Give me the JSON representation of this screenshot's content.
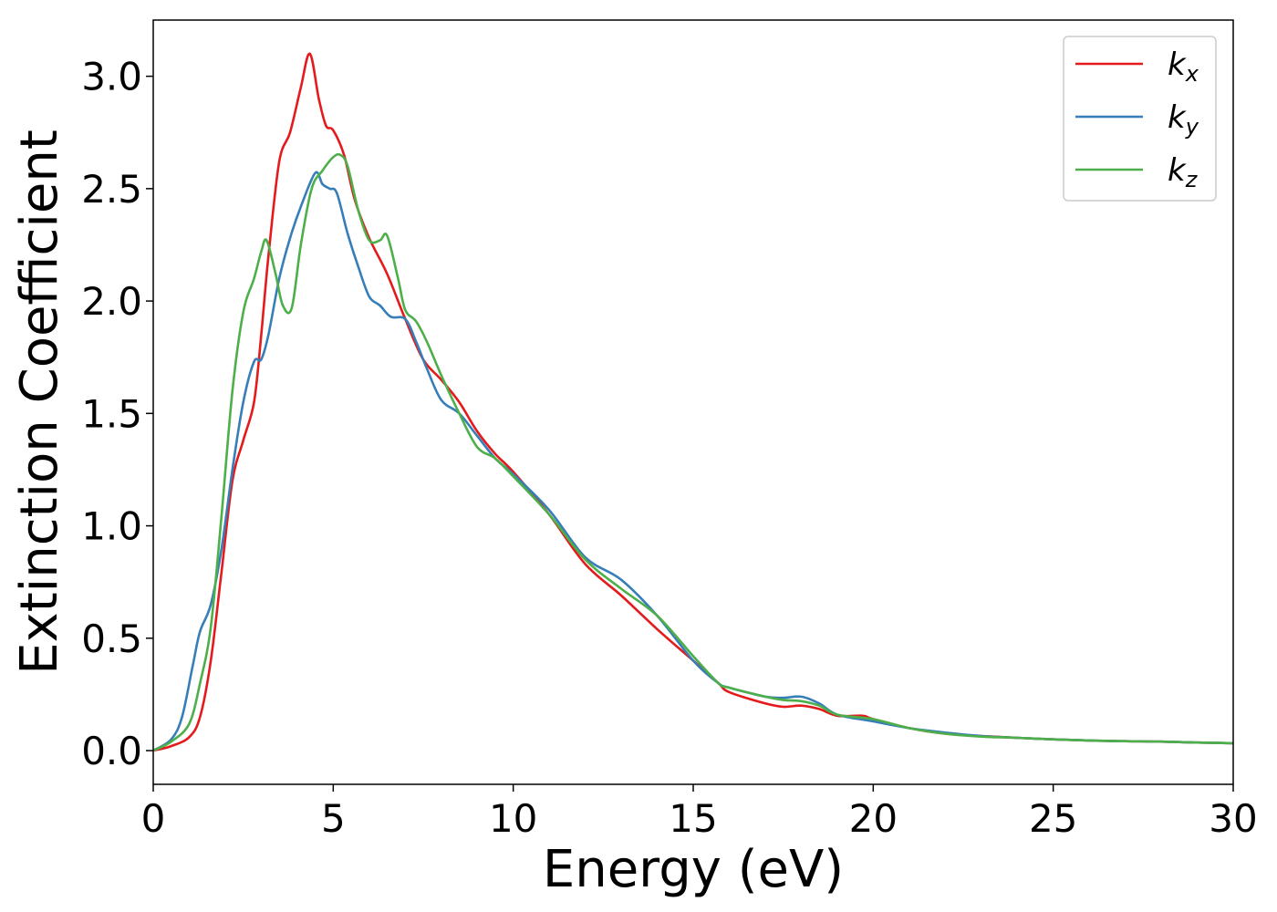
{
  "chart_data": {
    "type": "line",
    "xlabel": "Energy (eV)",
    "ylabel": "Extinction Coefficient",
    "xlim": [
      0,
      30
    ],
    "ylim": [
      -0.15,
      3.25
    ],
    "xticks": [
      0,
      5,
      10,
      15,
      20,
      25,
      30
    ],
    "xtick_labels": [
      "0",
      "5",
      "10",
      "15",
      "20",
      "25",
      "30"
    ],
    "yticks": [
      0.0,
      0.5,
      1.0,
      1.5,
      2.0,
      2.5,
      3.0
    ],
    "ytick_labels": [
      "0.0",
      "0.5",
      "1.0",
      "1.5",
      "2.0",
      "2.5",
      "3.0"
    ],
    "grid": false,
    "legend_position": "top-right",
    "series": [
      {
        "name": "k",
        "subscript": "x",
        "color": "#e41a1c",
        "x": [
          0,
          0.5,
          1.0,
          1.3,
          1.6,
          1.9,
          2.2,
          2.5,
          2.8,
          3.0,
          3.2,
          3.5,
          3.8,
          4.1,
          4.35,
          4.6,
          4.8,
          5.0,
          5.3,
          5.6,
          6.0,
          6.5,
          7.0,
          7.5,
          8.0,
          8.5,
          9.0,
          9.5,
          10.0,
          11.0,
          12.0,
          13.0,
          14.0,
          15.0,
          15.7,
          16.0,
          17.0,
          17.5,
          18.0,
          18.5,
          19.0,
          19.7,
          20.0,
          21.0,
          22.0,
          23.0,
          24.0,
          25.0,
          26.0,
          27.0,
          28.0,
          29.0,
          30.0
        ],
        "y": [
          0.0,
          0.02,
          0.06,
          0.15,
          0.4,
          0.8,
          1.2,
          1.38,
          1.55,
          1.85,
          2.2,
          2.62,
          2.75,
          2.95,
          3.1,
          2.9,
          2.78,
          2.76,
          2.65,
          2.45,
          2.28,
          2.12,
          1.92,
          1.74,
          1.65,
          1.55,
          1.42,
          1.32,
          1.24,
          1.05,
          0.83,
          0.69,
          0.54,
          0.4,
          0.3,
          0.26,
          0.21,
          0.195,
          0.2,
          0.185,
          0.155,
          0.155,
          0.14,
          0.1,
          0.075,
          0.065,
          0.057,
          0.05,
          0.045,
          0.042,
          0.04,
          0.036,
          0.033
        ]
      },
      {
        "name": "k",
        "subscript": "y",
        "color": "#377eb8",
        "x": [
          0,
          0.5,
          0.8,
          1.1,
          1.3,
          1.6,
          1.9,
          2.2,
          2.5,
          2.8,
          3.0,
          3.2,
          3.5,
          3.8,
          4.1,
          4.5,
          4.7,
          4.9,
          5.1,
          5.4,
          5.7,
          6.0,
          6.3,
          6.6,
          7.0,
          7.3,
          7.6,
          8.0,
          8.5,
          9.0,
          9.5,
          10.0,
          11.0,
          12.0,
          13.0,
          14.0,
          15.0,
          15.7,
          16.0,
          17.0,
          17.5,
          18.0,
          18.5,
          19.0,
          20.0,
          21.0,
          22.0,
          23.0,
          24.0,
          25.0,
          26.0,
          27.0,
          28.0,
          29.0,
          30.0
        ],
        "y": [
          0.0,
          0.05,
          0.15,
          0.38,
          0.53,
          0.65,
          0.9,
          1.25,
          1.55,
          1.73,
          1.74,
          1.85,
          2.1,
          2.28,
          2.42,
          2.57,
          2.52,
          2.5,
          2.48,
          2.3,
          2.15,
          2.02,
          1.98,
          1.93,
          1.92,
          1.82,
          1.7,
          1.56,
          1.5,
          1.4,
          1.3,
          1.23,
          1.07,
          0.86,
          0.76,
          0.6,
          0.4,
          0.3,
          0.28,
          0.24,
          0.235,
          0.24,
          0.21,
          0.16,
          0.13,
          0.1,
          0.08,
          0.065,
          0.057,
          0.05,
          0.045,
          0.042,
          0.04,
          0.036,
          0.033
        ]
      },
      {
        "name": "k",
        "subscript": "z",
        "color": "#4daf4a",
        "x": [
          0,
          0.5,
          1.0,
          1.3,
          1.6,
          1.9,
          2.2,
          2.5,
          2.8,
          3.0,
          3.15,
          3.4,
          3.6,
          3.85,
          4.1,
          4.4,
          4.7,
          5.0,
          5.2,
          5.4,
          5.7,
          6.0,
          6.3,
          6.5,
          6.8,
          7.0,
          7.3,
          7.6,
          8.0,
          8.5,
          9.0,
          9.5,
          10.0,
          11.0,
          12.0,
          13.0,
          14.0,
          15.0,
          15.7,
          16.0,
          17.0,
          17.5,
          18.0,
          18.5,
          19.0,
          20.0,
          21.0,
          22.0,
          23.0,
          24.0,
          25.0,
          26.0,
          27.0,
          28.0,
          29.0,
          30.0
        ],
        "y": [
          0.0,
          0.04,
          0.12,
          0.3,
          0.55,
          1.05,
          1.6,
          1.95,
          2.1,
          2.22,
          2.27,
          2.12,
          1.98,
          1.97,
          2.25,
          2.5,
          2.58,
          2.64,
          2.65,
          2.6,
          2.4,
          2.27,
          2.27,
          2.29,
          2.1,
          1.96,
          1.91,
          1.82,
          1.67,
          1.5,
          1.35,
          1.3,
          1.22,
          1.05,
          0.85,
          0.72,
          0.6,
          0.42,
          0.3,
          0.28,
          0.24,
          0.225,
          0.22,
          0.2,
          0.16,
          0.14,
          0.1,
          0.075,
          0.062,
          0.057,
          0.05,
          0.045,
          0.042,
          0.04,
          0.036,
          0.033
        ]
      }
    ]
  }
}
